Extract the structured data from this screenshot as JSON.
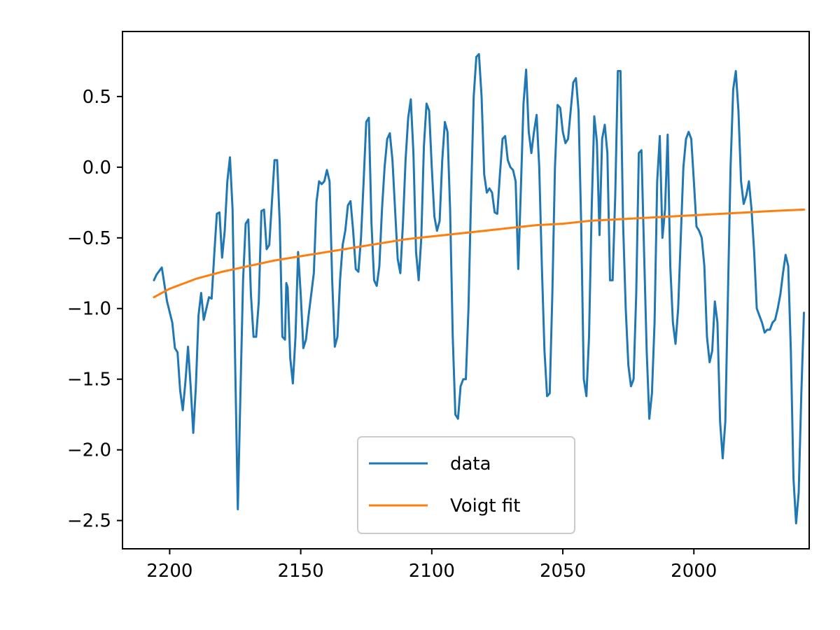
{
  "chart_data": {
    "type": "line",
    "title": "",
    "xlabel": "",
    "ylabel": "",
    "xlim": [
      2218,
      1956
    ],
    "ylim": [
      -2.7,
      0.96
    ],
    "x_inverted": true,
    "grid": false,
    "legend_position": "lower center",
    "x_ticks": [
      2200,
      2150,
      2100,
      2050,
      2000
    ],
    "y_ticks": [
      0.5,
      0.0,
      -0.5,
      -1.0,
      -1.5,
      -2.0,
      -2.5
    ],
    "y_tick_labels": [
      "0.5",
      "0.0",
      "−0.5",
      "−1.0",
      "−1.5",
      "−2.0",
      "−2.5"
    ],
    "series": [
      {
        "name": "data",
        "color": "#1f77b4",
        "points": [
          [
            2206,
            -0.8
          ],
          [
            2205,
            -0.76
          ],
          [
            2203,
            -0.71
          ],
          [
            2201,
            -0.95
          ],
          [
            2199,
            -1.1
          ],
          [
            2198,
            -1.28
          ],
          [
            2197,
            -1.31
          ],
          [
            2196,
            -1.58
          ],
          [
            2195,
            -1.72
          ],
          [
            2194,
            -1.52
          ],
          [
            2193,
            -1.27
          ],
          [
            2192,
            -1.55
          ],
          [
            2191,
            -1.88
          ],
          [
            2190,
            -1.55
          ],
          [
            2189,
            -1.05
          ],
          [
            2188,
            -0.89
          ],
          [
            2187,
            -1.08
          ],
          [
            2185,
            -0.92
          ],
          [
            2184,
            -0.93
          ],
          [
            2183,
            -0.62
          ],
          [
            2182,
            -0.33
          ],
          [
            2181,
            -0.32
          ],
          [
            2180,
            -0.64
          ],
          [
            2179,
            -0.45
          ],
          [
            2178,
            -0.1
          ],
          [
            2177,
            0.07
          ],
          [
            2176,
            -0.3
          ],
          [
            2175,
            -1.4
          ],
          [
            2174,
            -2.42
          ],
          [
            2173,
            -1.6
          ],
          [
            2172,
            -0.8
          ],
          [
            2171,
            -0.4
          ],
          [
            2170,
            -0.37
          ],
          [
            2169,
            -0.9
          ],
          [
            2168,
            -1.2
          ],
          [
            2167,
            -1.2
          ],
          [
            2166,
            -0.95
          ],
          [
            2165,
            -0.31
          ],
          [
            2164,
            -0.3
          ],
          [
            2163,
            -0.58
          ],
          [
            2162,
            -0.55
          ],
          [
            2161,
            -0.25
          ],
          [
            2160,
            0.05
          ],
          [
            2159,
            0.05
          ],
          [
            2158,
            -0.4
          ],
          [
            2157,
            -1.2
          ],
          [
            2156,
            -1.22
          ],
          [
            2155.5,
            -0.82
          ],
          [
            2155,
            -0.85
          ],
          [
            2154,
            -1.35
          ],
          [
            2153,
            -1.53
          ],
          [
            2152,
            -1.2
          ],
          [
            2151,
            -0.6
          ],
          [
            2150,
            -0.9
          ],
          [
            2149,
            -1.28
          ],
          [
            2148,
            -1.22
          ],
          [
            2147,
            -1.05
          ],
          [
            2146,
            -0.9
          ],
          [
            2145,
            -0.75
          ],
          [
            2144,
            -0.25
          ],
          [
            2143,
            -0.1
          ],
          [
            2142,
            -0.12
          ],
          [
            2141,
            -0.1
          ],
          [
            2140,
            -0.02
          ],
          [
            2139,
            -0.1
          ],
          [
            2138,
            -0.8
          ],
          [
            2137,
            -1.27
          ],
          [
            2136,
            -1.2
          ],
          [
            2135,
            -0.8
          ],
          [
            2134,
            -0.55
          ],
          [
            2133,
            -0.45
          ],
          [
            2132,
            -0.27
          ],
          [
            2131,
            -0.24
          ],
          [
            2130,
            -0.45
          ],
          [
            2129,
            -0.72
          ],
          [
            2128,
            -0.74
          ],
          [
            2127,
            -0.5
          ],
          [
            2126,
            -0.1
          ],
          [
            2125,
            0.32
          ],
          [
            2124,
            0.35
          ],
          [
            2123,
            -0.4
          ],
          [
            2122,
            -0.8
          ],
          [
            2121,
            -0.84
          ],
          [
            2120,
            -0.7
          ],
          [
            2119,
            -0.3
          ],
          [
            2118,
            0.0
          ],
          [
            2117,
            0.2
          ],
          [
            2116,
            0.24
          ],
          [
            2115,
            0.05
          ],
          [
            2114,
            -0.3
          ],
          [
            2113,
            -0.65
          ],
          [
            2112,
            -0.75
          ],
          [
            2111,
            -0.4
          ],
          [
            2110,
            0.05
          ],
          [
            2109,
            0.35
          ],
          [
            2108,
            0.48
          ],
          [
            2107,
            0.1
          ],
          [
            2106,
            -0.6
          ],
          [
            2105,
            -0.8
          ],
          [
            2104,
            -0.5
          ],
          [
            2103,
            0.15
          ],
          [
            2102,
            0.45
          ],
          [
            2101,
            0.4
          ],
          [
            2100,
            0.0
          ],
          [
            2099,
            -0.35
          ],
          [
            2098,
            -0.45
          ],
          [
            2097,
            -0.38
          ],
          [
            2096,
            0.05
          ],
          [
            2095,
            0.32
          ],
          [
            2094,
            0.25
          ],
          [
            2093,
            -0.3
          ],
          [
            2092,
            -1.2
          ],
          [
            2091,
            -1.75
          ],
          [
            2090,
            -1.78
          ],
          [
            2089,
            -1.55
          ],
          [
            2088,
            -1.5
          ],
          [
            2087,
            -1.5
          ],
          [
            2086,
            -1.0
          ],
          [
            2085,
            -0.2
          ],
          [
            2084,
            0.5
          ],
          [
            2083,
            0.78
          ],
          [
            2082,
            0.8
          ],
          [
            2081,
            0.5
          ],
          [
            2080,
            -0.05
          ],
          [
            2079,
            -0.18
          ],
          [
            2078,
            -0.15
          ],
          [
            2077,
            -0.18
          ],
          [
            2076,
            -0.32
          ],
          [
            2075,
            -0.33
          ],
          [
            2074,
            -0.05
          ],
          [
            2073,
            0.2
          ],
          [
            2072,
            0.22
          ],
          [
            2071,
            0.05
          ],
          [
            2070,
            0.0
          ],
          [
            2069,
            -0.02
          ],
          [
            2068,
            -0.1
          ],
          [
            2067,
            -0.72
          ],
          [
            2066,
            -0.15
          ],
          [
            2065,
            0.45
          ],
          [
            2064,
            0.69
          ],
          [
            2063,
            0.25
          ],
          [
            2062,
            0.1
          ],
          [
            2061,
            0.25
          ],
          [
            2060,
            0.37
          ],
          [
            2059,
            0.0
          ],
          [
            2058,
            -0.7
          ],
          [
            2057,
            -1.3
          ],
          [
            2056,
            -1.62
          ],
          [
            2055,
            -1.6
          ],
          [
            2054,
            -0.9
          ],
          [
            2053,
            0.0
          ],
          [
            2052,
            0.44
          ],
          [
            2051,
            0.42
          ],
          [
            2050,
            0.25
          ],
          [
            2049,
            0.17
          ],
          [
            2048,
            0.2
          ],
          [
            2047,
            0.4
          ],
          [
            2046,
            0.6
          ],
          [
            2045,
            0.63
          ],
          [
            2044,
            0.4
          ],
          [
            2043,
            -0.4
          ],
          [
            2042,
            -1.5
          ],
          [
            2041,
            -1.62
          ],
          [
            2040,
            -1.2
          ],
          [
            2039,
            -0.3
          ],
          [
            2038,
            0.36
          ],
          [
            2037,
            0.18
          ],
          [
            2036,
            -0.48
          ],
          [
            2035,
            0.2
          ],
          [
            2034,
            0.3
          ],
          [
            2033,
            0.1
          ],
          [
            2032,
            -0.8
          ],
          [
            2031,
            -0.8
          ],
          [
            2030,
            -0.2
          ],
          [
            2029,
            0.68
          ],
          [
            2028,
            0.68
          ],
          [
            2027,
            -0.4
          ],
          [
            2026,
            -1.0
          ],
          [
            2025,
            -1.4
          ],
          [
            2024,
            -1.55
          ],
          [
            2023,
            -1.5
          ],
          [
            2022,
            -0.9
          ],
          [
            2021,
            0.1
          ],
          [
            2020,
            0.12
          ],
          [
            2019,
            -0.6
          ],
          [
            2018,
            -1.3
          ],
          [
            2017,
            -1.78
          ],
          [
            2016,
            -1.6
          ],
          [
            2015,
            -1.1
          ],
          [
            2014,
            -0.1
          ],
          [
            2013,
            0.22
          ],
          [
            2012,
            -0.5
          ],
          [
            2011,
            -0.3
          ],
          [
            2010,
            0.23
          ],
          [
            2009,
            -0.7
          ],
          [
            2008,
            -1.1
          ],
          [
            2007,
            -1.25
          ],
          [
            2006,
            -1.0
          ],
          [
            2005,
            -0.5
          ],
          [
            2004,
            0.0
          ],
          [
            2003,
            0.2
          ],
          [
            2002,
            0.25
          ],
          [
            2001,
            0.2
          ],
          [
            2000,
            -0.1
          ],
          [
            1999,
            -0.42
          ],
          [
            1998,
            -0.45
          ],
          [
            1997,
            -0.5
          ],
          [
            1996,
            -0.7
          ],
          [
            1995,
            -1.2
          ],
          [
            1994,
            -1.38
          ],
          [
            1993,
            -1.3
          ],
          [
            1992,
            -0.95
          ],
          [
            1991,
            -1.1
          ],
          [
            1990,
            -1.8
          ],
          [
            1989,
            -2.06
          ],
          [
            1988,
            -1.8
          ],
          [
            1987,
            -0.9
          ],
          [
            1986,
            0.0
          ],
          [
            1985,
            0.55
          ],
          [
            1984,
            0.68
          ],
          [
            1983,
            0.4
          ],
          [
            1982,
            -0.1
          ],
          [
            1981,
            -0.26
          ],
          [
            1980,
            -0.2
          ],
          [
            1979,
            -0.1
          ],
          [
            1978,
            -0.3
          ],
          [
            1977,
            -0.6
          ],
          [
            1976,
            -1.0
          ],
          [
            1975,
            -1.05
          ],
          [
            1974,
            -1.1
          ],
          [
            1973,
            -1.17
          ],
          [
            1972,
            -1.15
          ],
          [
            1971,
            -1.15
          ],
          [
            1970,
            -1.1
          ],
          [
            1969,
            -1.08
          ],
          [
            1968,
            -1.0
          ],
          [
            1967,
            -0.9
          ],
          [
            1966,
            -0.75
          ],
          [
            1965,
            -0.62
          ],
          [
            1964,
            -0.7
          ],
          [
            1963,
            -1.3
          ],
          [
            1962,
            -2.2
          ],
          [
            1961,
            -2.52
          ],
          [
            1960,
            -2.3
          ],
          [
            1959,
            -1.6
          ],
          [
            1958,
            -1.03
          ]
        ]
      },
      {
        "name": "Voigt fit",
        "color": "#ff7f0e",
        "points": [
          [
            2206,
            -0.92
          ],
          [
            2200,
            -0.86
          ],
          [
            2190,
            -0.79
          ],
          [
            2180,
            -0.74
          ],
          [
            2170,
            -0.7
          ],
          [
            2160,
            -0.66
          ],
          [
            2150,
            -0.63
          ],
          [
            2140,
            -0.6
          ],
          [
            2130,
            -0.57
          ],
          [
            2120,
            -0.54
          ],
          [
            2110,
            -0.51
          ],
          [
            2100,
            -0.49
          ],
          [
            2090,
            -0.47
          ],
          [
            2080,
            -0.45
          ],
          [
            2070,
            -0.43
          ],
          [
            2060,
            -0.41
          ],
          [
            2050,
            -0.4
          ],
          [
            2040,
            -0.38
          ],
          [
            2030,
            -0.37
          ],
          [
            2020,
            -0.36
          ],
          [
            2010,
            -0.35
          ],
          [
            2000,
            -0.34
          ],
          [
            1990,
            -0.33
          ],
          [
            1980,
            -0.32
          ],
          [
            1970,
            -0.31
          ],
          [
            1958,
            -0.3
          ]
        ]
      }
    ]
  }
}
